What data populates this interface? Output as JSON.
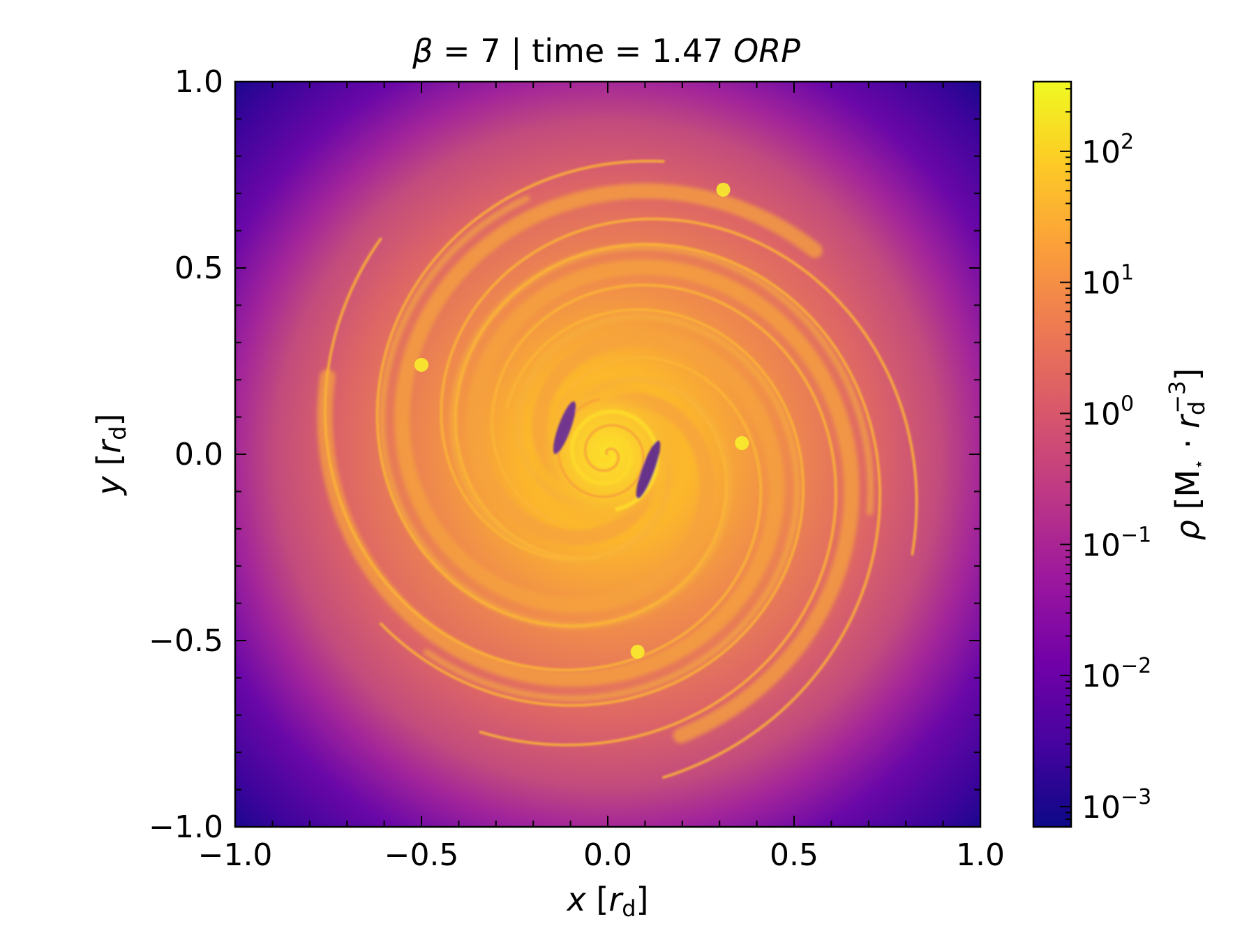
{
  "chart_data": {
    "type": "heatmap",
    "title": {
      "beta_symbol": "β",
      "beta_text": " = 7 | time = 1.47 ",
      "unit": "ORP"
    },
    "xlabel": {
      "var": "x",
      "open": " [",
      "sym": "r",
      "sub": "d",
      "close": "]"
    },
    "ylabel": {
      "var": "y",
      "open": " [",
      "sym": "r",
      "sub": "d",
      "close": "]"
    },
    "xlim": [
      -1.0,
      1.0
    ],
    "ylim": [
      -1.0,
      1.0
    ],
    "xticks": [
      -1.0,
      -0.5,
      0.0,
      0.5,
      1.0
    ],
    "yticks": [
      -1.0,
      -0.5,
      0.0,
      0.5,
      1.0
    ],
    "xtick_labels": [
      "−1.0",
      "−0.5",
      "0.0",
      "0.5",
      "1.0"
    ],
    "ytick_labels": [
      "−1.0",
      "−0.5",
      "0.0",
      "0.5",
      "1.0"
    ],
    "minor_tick_step": 0.1,
    "colormap": "plasma",
    "colormap_stops": [
      "#0d0887",
      "#46039f",
      "#7201a8",
      "#9c179e",
      "#bd3786",
      "#d8576b",
      "#ed7953",
      "#fb9f3a",
      "#fdca26",
      "#f0f921"
    ],
    "colorbar": {
      "scale": "log",
      "range": [
        0.0007,
        340
      ],
      "ticks": [
        0.001,
        0.01,
        0.1,
        1,
        10,
        100
      ],
      "tick_labels": [
        {
          "base": "10",
          "exp": "−3"
        },
        {
          "base": "10",
          "exp": "−2"
        },
        {
          "base": "10",
          "exp": "−1"
        },
        {
          "base": "10",
          "exp": "0"
        },
        {
          "base": "10",
          "exp": "1"
        },
        {
          "base": "10",
          "exp": "2"
        }
      ],
      "label": {
        "var": "ρ",
        "open": " [M",
        "star": "⋆",
        "dot": " · ",
        "sym": "r",
        "sub": "d",
        "sup": "−3",
        "close": "]"
      }
    },
    "features": {
      "center": [
        0.0,
        0.0
      ],
      "disk_edge_radius": 0.95,
      "spiral_arms": 3,
      "clumps": [
        [
          -0.5,
          0.24
        ],
        [
          0.31,
          0.71
        ],
        [
          0.36,
          0.03
        ],
        [
          0.08,
          -0.53
        ]
      ]
    }
  }
}
